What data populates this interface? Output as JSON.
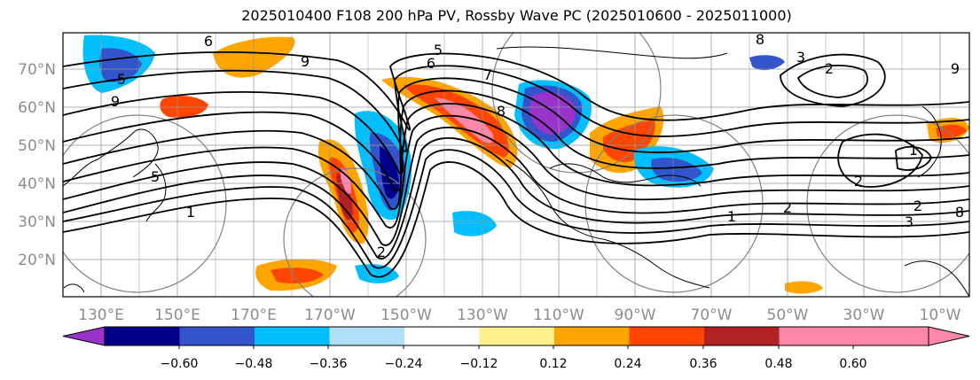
{
  "title": "2025010400 F108 200 hPa PV, Rossby Wave PC (2025010600 - 2025011000)",
  "latitude_labels": [
    "70°N",
    "60°N",
    "50°N",
    "40°N",
    "30°N",
    "20°N"
  ],
  "longitude_labels": [
    "130°E",
    "150°E",
    "170°E",
    "170°W",
    "150°W",
    "130°W",
    "110°W",
    "90°W",
    "70°W",
    "50°W",
    "30°W",
    "10°W"
  ],
  "colorbar": {
    "tick_labels": [
      "−0.60",
      "−0.48",
      "−0.36",
      "−0.24",
      "−0.12",
      "0.12",
      "0.24",
      "0.36",
      "0.48",
      "0.60"
    ],
    "colors": [
      "#9933cc",
      "#00008b",
      "#3355cc",
      "#00bfff",
      "#b0e0f8",
      "#ffffff",
      "#fff08c",
      "#ffa500",
      "#ff4500",
      "#b22222",
      "#ff88aa"
    ]
  },
  "pv_contour_labels": [
    "6",
    "5",
    "7",
    "8",
    "6",
    "9",
    "3",
    "2",
    "9",
    "8",
    "5",
    "9",
    "1",
    "2",
    "1",
    "2",
    "2",
    "3",
    "2",
    "8",
    "1",
    "5"
  ],
  "colors": {
    "contour": "#000000",
    "grid": "#999999",
    "coastline": "#000000",
    "range_ring": "#808080"
  }
}
